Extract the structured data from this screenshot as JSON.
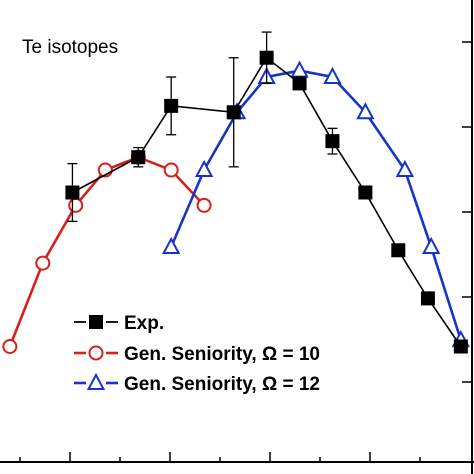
{
  "chart_data": {
    "type": "scatter",
    "title": "",
    "annotation": "Te isotopes",
    "xlabel": "",
    "ylabel": "",
    "xlim": [
      0,
      14.4
    ],
    "ylim": [
      0,
      14.4
    ],
    "grid": false,
    "legend_placement": "bottom-left",
    "series": [
      {
        "name": "Exp.",
        "color": "#000000",
        "marker": "filled-square",
        "x": [
          2.2,
          4.2,
          5.2,
          7.1,
          8.1,
          9.1,
          10.1,
          11.1,
          12.1,
          13.0,
          14.0
        ],
        "y": [
          8.4,
          9.5,
          11.1,
          10.9,
          12.6,
          11.8,
          10.0,
          8.4,
          6.6,
          5.1,
          3.6
        ],
        "yerr": [
          0.9,
          0.3,
          0.9,
          1.7,
          0.8,
          0,
          0.4,
          0,
          0,
          0,
          0
        ]
      },
      {
        "name": "Gen. Seniority, Ω = 10",
        "color": "#d6211a",
        "marker": "open-circle",
        "x": [
          0.3,
          1.3,
          2.3,
          3.2,
          4.2,
          5.2,
          6.2
        ],
        "y": [
          3.6,
          6.2,
          8.0,
          9.1,
          9.5,
          9.1,
          8.0
        ],
        "yerr": []
      },
      {
        "name": "Gen. Seniority, Ω = 12",
        "color": "#1634c8",
        "marker": "open-triangle",
        "x": [
          5.2,
          6.2,
          7.2,
          8.1,
          9.1,
          10.1,
          11.1,
          12.3,
          13.1,
          14.0
        ],
        "y": [
          6.7,
          9.1,
          10.9,
          12.0,
          12.2,
          12.0,
          10.9,
          9.1,
          6.7,
          3.8
        ],
        "yerr": []
      }
    ]
  }
}
